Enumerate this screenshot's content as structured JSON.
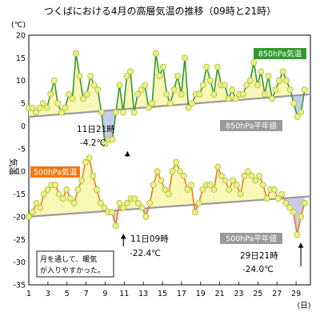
{
  "title": "つくばにおける4月の高層気温の推移（09時と21時）",
  "chart_data": {
    "type": "line",
    "x_label": "(日)",
    "y_unit": "(℃)",
    "y_axis_label": "気温",
    "ylim": [
      -35,
      20
    ],
    "y_ticks": [
      20,
      15,
      10,
      5,
      0,
      -5,
      -10,
      -15,
      -20,
      -25,
      -30,
      -35
    ],
    "x_ticks": [
      1,
      3,
      5,
      7,
      9,
      11,
      13,
      15,
      17,
      19,
      21,
      23,
      25,
      27,
      29
    ],
    "x_range": [
      1,
      30.5
    ],
    "grid": true,
    "series": [
      {
        "name": "850hPa気温",
        "color": "#2e9a2e",
        "point_fill": "#e9f27c",
        "label_bg": "#2e9a2e",
        "values": [
          4,
          4,
          3,
          4,
          5,
          4,
          7,
          10,
          5,
          3,
          4,
          7,
          6,
          16,
          11,
          6,
          7,
          11,
          9,
          8,
          3,
          -4,
          -3,
          -3,
          3,
          9,
          3,
          11,
          12,
          3,
          7,
          8,
          9,
          4,
          5,
          16,
          11,
          13,
          7,
          5,
          8,
          11,
          7,
          15,
          4,
          5,
          7,
          7,
          9,
          13,
          10,
          7,
          13,
          9,
          9,
          6,
          8,
          6,
          7,
          7,
          9,
          10,
          14,
          9,
          12,
          7,
          11,
          6,
          8,
          10,
          12,
          10,
          8,
          5,
          2,
          3,
          8
        ]
      },
      {
        "name": "850hPa平年値",
        "color": "#9a9a9a",
        "label_bg": "#9a9a9a",
        "start": 2,
        "end": 7
      },
      {
        "name": "500hPa気温",
        "color": "#ef7a12",
        "point_fill": "#e9f27c",
        "label_bg": "#ef7a12",
        "values": [
          -20,
          -19,
          -17,
          -18,
          -15,
          -14,
          -13,
          -13,
          -15,
          -16,
          -14,
          -16,
          -17,
          -14,
          -12,
          -8,
          -7,
          -11,
          -14,
          -17,
          -18,
          -19,
          -19,
          -22,
          -17,
          -18,
          -17,
          -16,
          -16,
          -17,
          -18,
          -20,
          -17,
          -13,
          -10,
          -12,
          -14,
          -15,
          -10,
          -8,
          -10,
          -11,
          -14,
          -13,
          -19,
          -17,
          -14,
          -13,
          -13,
          -14,
          -9,
          -11,
          -12,
          -14,
          -12,
          -13,
          -15,
          -11,
          -10,
          -11,
          -12,
          -11,
          -13,
          -16,
          -14,
          -14,
          -16,
          -15,
          -17,
          -18,
          -19,
          -24,
          -20,
          -17
        ]
      },
      {
        "name": "500hPa平年値",
        "color": "#9a9a9a",
        "label_bg": "#9a9a9a",
        "start": -20,
        "end": -15.5
      }
    ],
    "annotations": [
      {
        "text_line1": "11日21時",
        "text_line2": "-4.2℃",
        "day": 11.5,
        "value": -4.2
      },
      {
        "text_line1": "11日09時",
        "text_line2": "-22.4℃",
        "day": 11.0,
        "value": -22.4
      },
      {
        "text_line1": "29日21時",
        "text_line2": "-24.0℃",
        "day": 29.5,
        "value": -24.0
      }
    ],
    "note_line1": "月を通して、暖気",
    "note_line2": "が入りやすかった。"
  }
}
